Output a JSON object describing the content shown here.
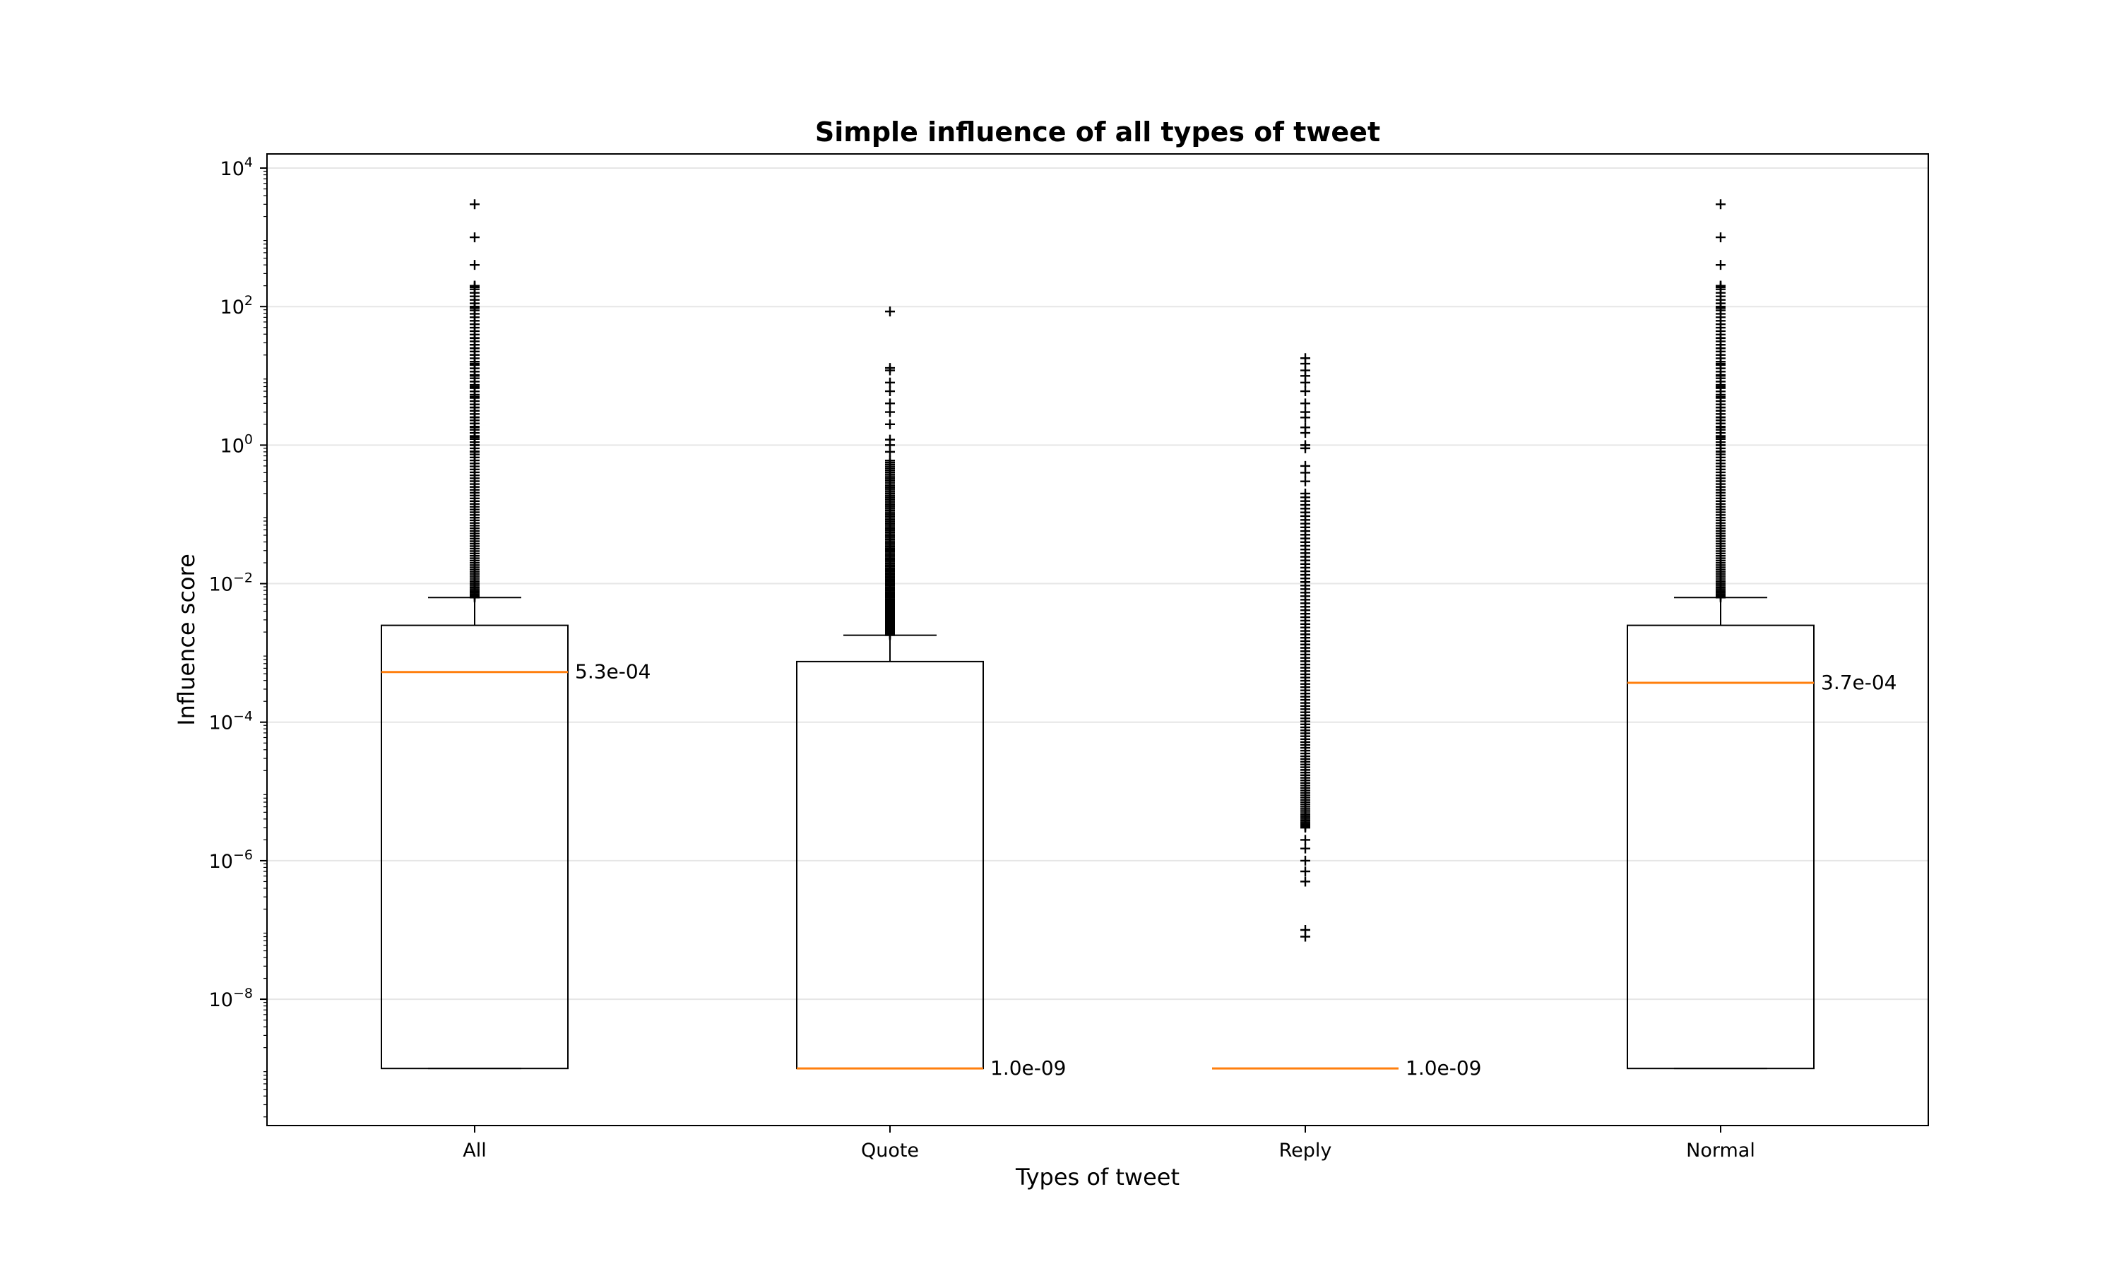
{
  "chart_data": {
    "type": "box",
    "title": "Simple influence of all types of tweet",
    "xlabel": "Types of tweet",
    "ylabel": "Influence score",
    "y_scale": "log",
    "ylim": [
      1.5e-10,
      16000.0
    ],
    "y_ticks": [
      {
        "base": "10",
        "exp": "4",
        "value": 10000
      },
      {
        "base": "10",
        "exp": "2",
        "value": 100
      },
      {
        "base": "10",
        "exp": "0",
        "value": 1
      },
      {
        "base": "10",
        "exp": "−2",
        "value": 0.01
      },
      {
        "base": "10",
        "exp": "−4",
        "value": 0.0001
      },
      {
        "base": "10",
        "exp": "−6",
        "value": 1e-06
      },
      {
        "base": "10",
        "exp": "−8",
        "value": 1e-08
      }
    ],
    "grid": "horizontal",
    "colors": {
      "box": "#000000",
      "median": "#ff7f0e",
      "grid": "#e6e6e6"
    },
    "categories": [
      "All",
      "Quote",
      "Reply",
      "Normal"
    ],
    "boxes": [
      {
        "category": "All",
        "whisker_low": 1e-09,
        "q1": 1e-09,
        "median": 0.00053,
        "q3": 0.0025,
        "whisker_high": 0.0063,
        "median_label": "5.3e-04",
        "outlier_range": [
          0.0063,
          200
        ],
        "outliers_extra": [
          3000,
          1000,
          400,
          200,
          190,
          100,
          95,
          35,
          25,
          15,
          10,
          7,
          5,
          3.5,
          2.5,
          1.8,
          1.3,
          1.0,
          0.8
        ]
      },
      {
        "category": "Quote",
        "whisker_low": 1e-09,
        "q1": 1e-09,
        "median": 1e-09,
        "q3": 0.00075,
        "whisker_high": 0.0018,
        "median_label": "1.0e-09",
        "outlier_range": [
          0.0018,
          0.6
        ],
        "outliers_extra": [
          85,
          13,
          12,
          8,
          6,
          4,
          3,
          2,
          1.2,
          1.0,
          0.8
        ]
      },
      {
        "category": "Reply",
        "whisker_low": 1e-09,
        "q1": 1e-09,
        "median": 1e-09,
        "q3": 1e-09,
        "whisker_high": 1e-09,
        "median_label": "1.0e-09",
        "outlier_range": [
          3e-06,
          0.2
        ],
        "outliers_extra": [
          18,
          15,
          12,
          10,
          8,
          6,
          4,
          3,
          2.5,
          1.8,
          1.5,
          1.0,
          0.9,
          0.5,
          0.4,
          0.3,
          2e-06,
          1.5e-06,
          1e-06,
          7e-07,
          5e-07,
          1e-07,
          8e-08
        ]
      },
      {
        "category": "Normal",
        "whisker_low": 1e-09,
        "q1": 1e-09,
        "median": 0.00037,
        "q3": 0.0025,
        "whisker_high": 0.0063,
        "median_label": "3.7e-04",
        "outlier_range": [
          0.0063,
          200
        ],
        "outliers_extra": [
          3000,
          1000,
          400,
          200,
          190,
          100,
          95,
          35,
          25,
          15,
          10,
          7,
          5,
          3.5,
          2.5,
          1.8,
          1.3,
          1.0,
          0.8
        ]
      }
    ]
  }
}
